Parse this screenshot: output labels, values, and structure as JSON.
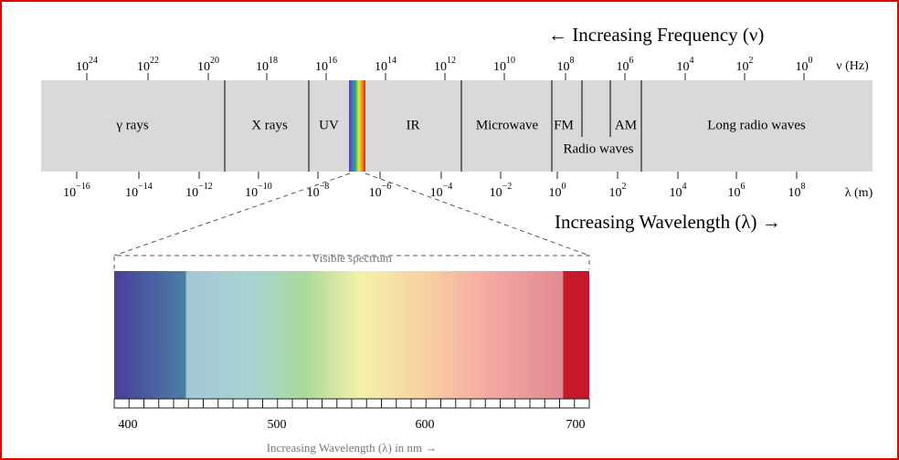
{
  "header": {
    "frequency_arrow": "← Increasing Frequency (ν)",
    "wavelength_arrow": "Increasing Wavelength (λ) →"
  },
  "frequency_axis": {
    "unit": "ν (Hz)",
    "ticks": [
      {
        "base": "10",
        "exp": "24"
      },
      {
        "base": "10",
        "exp": "22"
      },
      {
        "base": "10",
        "exp": "20"
      },
      {
        "base": "10",
        "exp": "18"
      },
      {
        "base": "10",
        "exp": "16"
      },
      {
        "base": "10",
        "exp": "14"
      },
      {
        "base": "10",
        "exp": "12"
      },
      {
        "base": "10",
        "exp": "10"
      },
      {
        "base": "10",
        "exp": "8"
      },
      {
        "base": "10",
        "exp": "6"
      },
      {
        "base": "10",
        "exp": "4"
      },
      {
        "base": "10",
        "exp": "2"
      },
      {
        "base": "10",
        "exp": "0"
      }
    ]
  },
  "wavelength_axis": {
    "unit": "λ (m)",
    "ticks": [
      {
        "base": "10",
        "exp": "−16"
      },
      {
        "base": "10",
        "exp": "−14"
      },
      {
        "base": "10",
        "exp": "−12"
      },
      {
        "base": "10",
        "exp": "−10"
      },
      {
        "base": "10",
        "exp": "−8"
      },
      {
        "base": "10",
        "exp": "−6"
      },
      {
        "base": "10",
        "exp": "−4"
      },
      {
        "base": "10",
        "exp": "−2"
      },
      {
        "base": "10",
        "exp": "0"
      },
      {
        "base": "10",
        "exp": "2"
      },
      {
        "base": "10",
        "exp": "4"
      },
      {
        "base": "10",
        "exp": "6"
      },
      {
        "base": "10",
        "exp": "8"
      }
    ]
  },
  "bands": [
    {
      "label": "γ rays"
    },
    {
      "label": "X rays"
    },
    {
      "label": "UV"
    },
    {
      "label": "IR"
    },
    {
      "label": "Microwave"
    },
    {
      "label": "FM"
    },
    {
      "label": "AM"
    },
    {
      "label": "Radio waves"
    },
    {
      "label": "Long radio waves"
    }
  ],
  "visible": {
    "title": "Visible spectrum",
    "scale_labels": [
      "400",
      "500",
      "600",
      "700"
    ],
    "caption": "Increasing Wavelength (λ) in nm →"
  }
}
